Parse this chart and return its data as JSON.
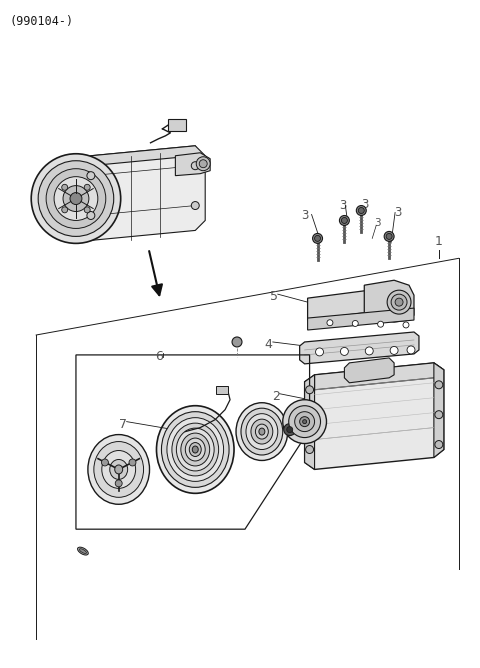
{
  "title": "(990104-)",
  "bg_color": "#ffffff",
  "line_color": "#1a1a1a",
  "label_color": "#555555",
  "fig_width": 4.8,
  "fig_height": 6.68,
  "dpi": 100
}
